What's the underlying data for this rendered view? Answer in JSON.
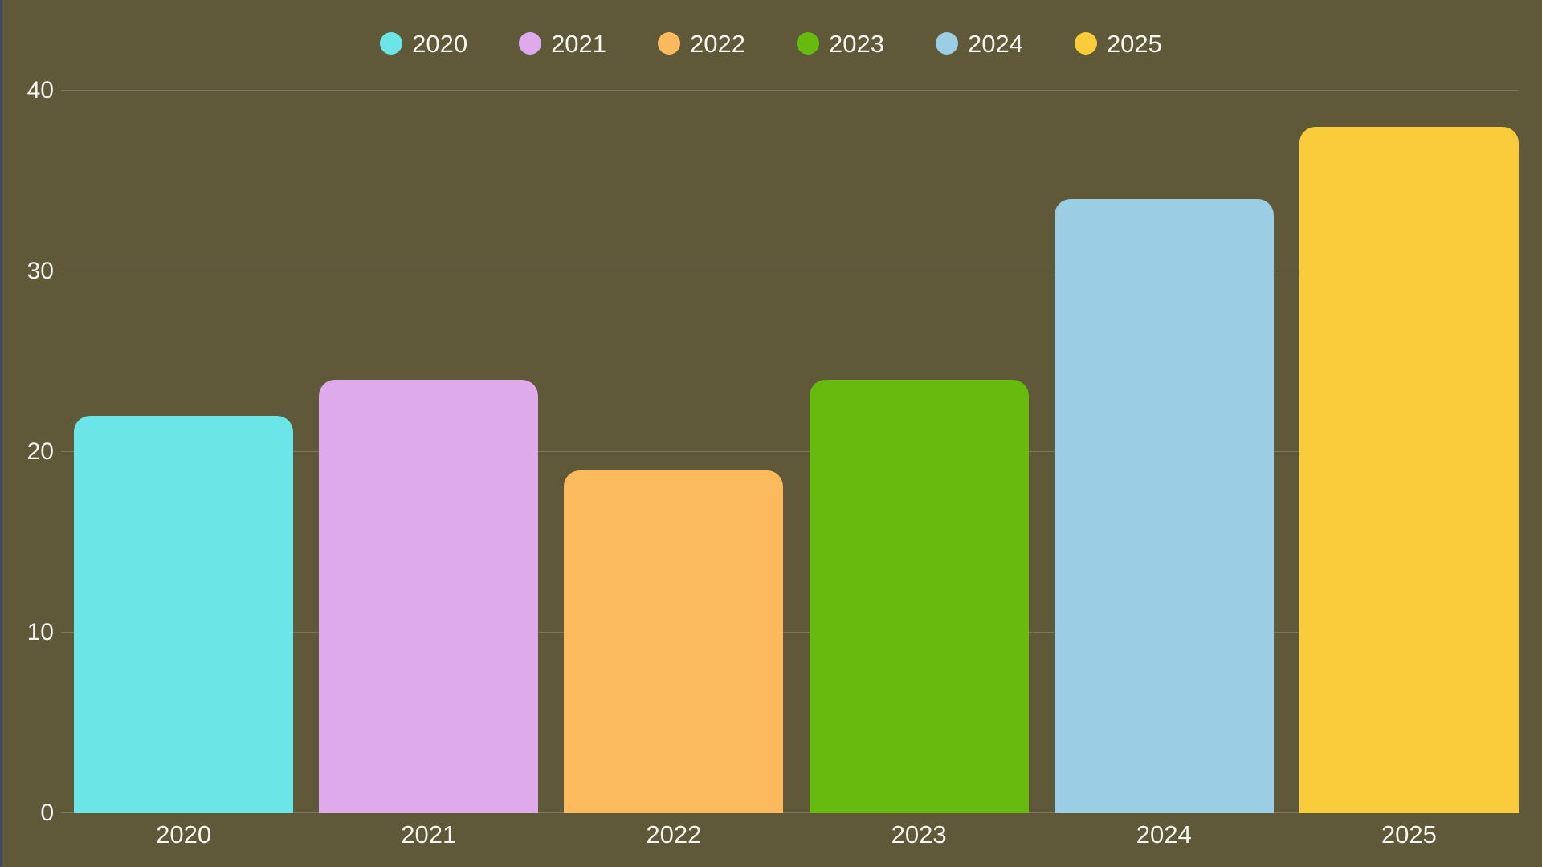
{
  "chart_data": {
    "type": "bar",
    "title": "",
    "xlabel": "",
    "ylabel": "",
    "categories": [
      "2020",
      "2021",
      "2022",
      "2023",
      "2024",
      "2025"
    ],
    "values": [
      22,
      24,
      19,
      24,
      34,
      38
    ],
    "colors": [
      "#6ce5e6",
      "#dfaaec",
      "#fcba5e",
      "#67bb0e",
      "#9bcde4",
      "#facc3c"
    ],
    "ylim": [
      0,
      40
    ],
    "yticks": [
      0,
      10,
      20,
      30,
      40
    ],
    "grid": true,
    "legend_position": "top",
    "legend_labels": [
      "2020",
      "2021",
      "2022",
      "2023",
      "2024",
      "2025"
    ],
    "bar_corner_radius_px": 20
  },
  "style": {
    "background_color": "#5f5839",
    "text_color": "#f7f6f1",
    "grid_color": "rgba(255,255,255,0.18)",
    "left_edge_strip_color": "#3d4a5f"
  }
}
